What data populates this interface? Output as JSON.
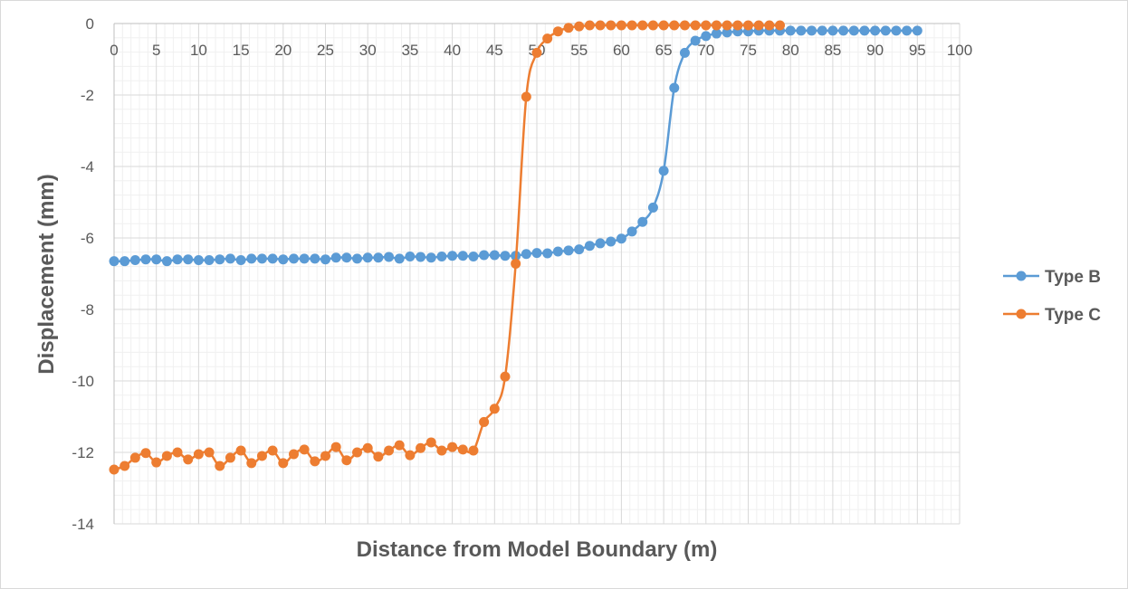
{
  "chart_data": {
    "type": "scatter",
    "title": "",
    "xlabel": "Distance from Model Boundary (m)",
    "ylabel": "Displacement (mm)",
    "xlim": [
      0,
      100
    ],
    "ylim": [
      -14,
      0
    ],
    "x_major_step": 5,
    "x_minor_step": 1,
    "y_major_step": 2,
    "y_minor_step": 0.4,
    "x_ticks": [
      "0",
      "5",
      "10",
      "15",
      "20",
      "25",
      "30",
      "35",
      "40",
      "45",
      "50",
      "55",
      "60",
      "65",
      "70",
      "75",
      "80",
      "85",
      "90",
      "95",
      "100"
    ],
    "y_ticks": [
      "0",
      "-2",
      "-4",
      "-6",
      "-8",
      "-10",
      "-12",
      "-14"
    ],
    "grid": true,
    "legend_position": "right",
    "series": [
      {
        "name": "Type B",
        "color": "#5B9BD5",
        "x": [
          0,
          1.25,
          2.5,
          3.75,
          5,
          6.25,
          7.5,
          8.75,
          10,
          11.25,
          12.5,
          13.75,
          15,
          16.25,
          17.5,
          18.75,
          20,
          21.25,
          22.5,
          23.75,
          25,
          26.25,
          27.5,
          28.75,
          30,
          31.25,
          32.5,
          33.75,
          35,
          36.25,
          37.5,
          38.75,
          40,
          41.25,
          42.5,
          43.75,
          45,
          46.25,
          47.5,
          48.75,
          50,
          51.25,
          52.5,
          53.75,
          55,
          56.25,
          57.5,
          58.75,
          60,
          61.25,
          62.5,
          63.75,
          65,
          66.25,
          67.5,
          68.75,
          70,
          71.25,
          72.5,
          73.75,
          75,
          76.25,
          77.5,
          78.75,
          80,
          81.25,
          82.5,
          83.75,
          85,
          86.25,
          87.5,
          88.75,
          90,
          91.25,
          92.5,
          93.75,
          95
        ],
        "y": [
          -6.65,
          -6.65,
          -6.62,
          -6.6,
          -6.6,
          -6.65,
          -6.6,
          -6.6,
          -6.62,
          -6.62,
          -6.6,
          -6.58,
          -6.62,
          -6.58,
          -6.58,
          -6.58,
          -6.6,
          -6.58,
          -6.58,
          -6.58,
          -6.6,
          -6.55,
          -6.55,
          -6.58,
          -6.55,
          -6.55,
          -6.53,
          -6.58,
          -6.52,
          -6.53,
          -6.55,
          -6.52,
          -6.5,
          -6.5,
          -6.52,
          -6.48,
          -6.48,
          -6.5,
          -6.5,
          -6.45,
          -6.42,
          -6.43,
          -6.38,
          -6.35,
          -6.32,
          -6.22,
          -6.15,
          -6.1,
          -6.02,
          -5.82,
          -5.55,
          -5.15,
          -4.12,
          -1.8,
          -0.82,
          -0.48,
          -0.35,
          -0.28,
          -0.25,
          -0.22,
          -0.22,
          -0.2,
          -0.2,
          -0.2,
          -0.2,
          -0.2,
          -0.2,
          -0.2,
          -0.2,
          -0.2,
          -0.2,
          -0.2,
          -0.2,
          -0.2,
          -0.2,
          -0.2,
          -0.2
        ]
      },
      {
        "name": "Type C",
        "color": "#ED7D31",
        "x": [
          0,
          1.25,
          2.5,
          3.75,
          5,
          6.25,
          7.5,
          8.75,
          10,
          11.25,
          12.5,
          13.75,
          15,
          16.25,
          17.5,
          18.75,
          20,
          21.25,
          22.5,
          23.75,
          25,
          26.25,
          27.5,
          28.75,
          30,
          31.25,
          32.5,
          33.75,
          35,
          36.25,
          37.5,
          38.75,
          40,
          41.25,
          42.5,
          43.75,
          45,
          46.25,
          47.5,
          48.75,
          50,
          51.25,
          52.5,
          53.75,
          55,
          56.25,
          57.5,
          58.75,
          60,
          61.25,
          62.5,
          63.75,
          65,
          66.25,
          67.5,
          68.75,
          70,
          71.25,
          72.5,
          73.75,
          75,
          76.25,
          77.5,
          78.75
        ],
        "y": [
          -12.48,
          -12.38,
          -12.15,
          -12.02,
          -12.28,
          -12.1,
          -12.0,
          -12.2,
          -12.05,
          -12.0,
          -12.38,
          -12.15,
          -11.95,
          -12.3,
          -12.1,
          -11.95,
          -12.3,
          -12.05,
          -11.92,
          -12.25,
          -12.1,
          -11.85,
          -12.22,
          -12.0,
          -11.88,
          -12.12,
          -11.95,
          -11.8,
          -12.08,
          -11.88,
          -11.72,
          -11.95,
          -11.85,
          -11.92,
          -11.95,
          -11.15,
          -10.78,
          -9.88,
          -6.72,
          -2.05,
          -0.82,
          -0.42,
          -0.22,
          -0.12,
          -0.08,
          -0.05,
          -0.05,
          -0.05,
          -0.05,
          -0.05,
          -0.05,
          -0.05,
          -0.05,
          -0.05,
          -0.05,
          -0.05,
          -0.05,
          -0.05,
          -0.05,
          -0.05,
          -0.05,
          -0.05,
          -0.05,
          -0.05
        ]
      }
    ]
  }
}
